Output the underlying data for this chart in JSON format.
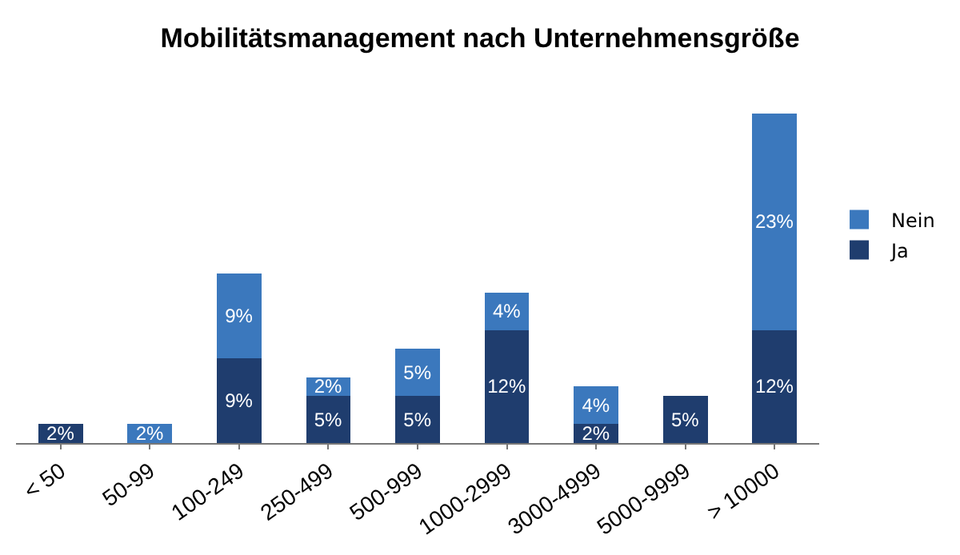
{
  "chart_data": {
    "type": "bar",
    "title": "Mobilitätsmanagement nach Unternehmensgröße",
    "stacked": true,
    "legend": "right",
    "categories": [
      "< 50",
      "50-99",
      "100-249",
      "250-499",
      "500-999",
      "1000-2999",
      "3000-4999",
      "5000-9999",
      "> 10000"
    ],
    "series": [
      {
        "name": "Ja",
        "color": "#1f3d6e",
        "values": [
          2,
          null,
          9,
          5,
          5,
          12,
          2,
          5,
          12
        ],
        "value_labels": [
          "2%",
          null,
          "9%",
          "5%",
          "5%",
          "12%",
          "2%",
          "5%",
          "12%"
        ]
      },
      {
        "name": "Nein",
        "color": "#3b78bd",
        "values": [
          null,
          2,
          9,
          2,
          5,
          4,
          4,
          null,
          23
        ],
        "value_labels": [
          null,
          "2%",
          "9%",
          "2%",
          "5%",
          "4%",
          "4%",
          null,
          "23%"
        ]
      }
    ]
  }
}
